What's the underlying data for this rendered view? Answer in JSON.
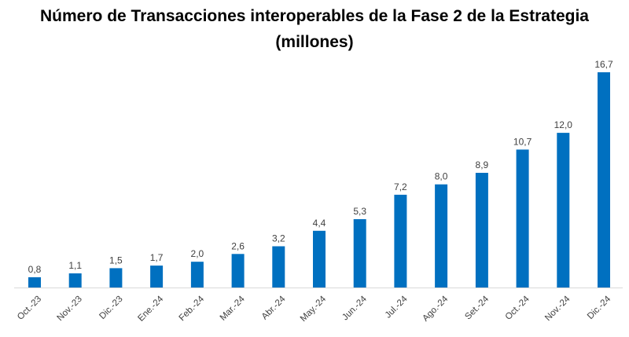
{
  "chart_data": {
    "type": "bar",
    "title": "Número de Transacciones interoperables de la Fase 2 de la Estrategia",
    "subtitle": "(millones)",
    "categories": [
      "Oct.-23",
      "Nov.-23",
      "Dic.-23",
      "Ene.-24",
      "Feb.-24",
      "Mar.-24",
      "Abr.-24",
      "May.-24",
      "Jun.-24",
      "Jul.-24",
      "Ago.-24",
      "Set.-24",
      "Oct.-24",
      "Nov.-24",
      "Dic.-24"
    ],
    "values": [
      0.8,
      1.1,
      1.5,
      1.7,
      2.0,
      2.6,
      3.2,
      4.4,
      5.3,
      7.2,
      8.0,
      8.9,
      10.7,
      12.0,
      16.7
    ],
    "data_labels": [
      "0,8",
      "1,1",
      "1,5",
      "1,7",
      "2,0",
      "2,6",
      "3,2",
      "4,4",
      "5,3",
      "7,2",
      "8,0",
      "8,9",
      "10,7",
      "12,0",
      "16,7"
    ],
    "xlabel": "",
    "ylabel": "",
    "ylim": [
      0,
      16.7
    ],
    "grid": false,
    "legend": "none",
    "bar_color": "#0070C0"
  }
}
